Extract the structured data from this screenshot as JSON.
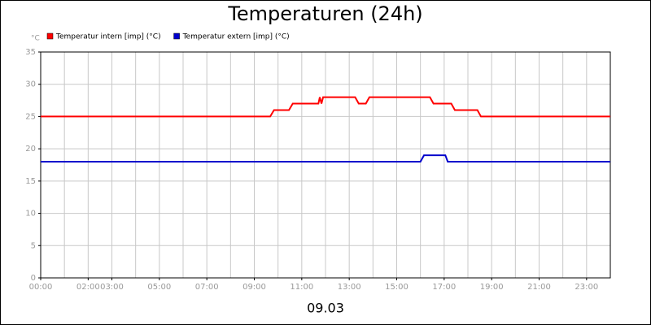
{
  "chart_data": {
    "type": "line",
    "title": "Temperaturen (24h)",
    "ylabel": "°C",
    "xlabel": "09.03",
    "x": [
      0,
      9.67,
      9.83,
      10.46,
      10.62,
      11.7,
      11.76,
      11.83,
      11.9,
      12.0,
      13.25,
      13.4,
      13.7,
      13.85,
      16.0,
      16.15,
      16.4,
      16.55,
      17.05,
      17.15,
      17.3,
      17.45,
      18.4,
      18.55,
      24
    ],
    "series": [
      {
        "name": "Temperatur intern [imp] (°C)",
        "color": "#ff0000",
        "values": [
          25,
          25,
          26,
          26,
          27,
          27,
          28,
          27,
          28,
          28,
          28,
          27,
          27,
          28,
          28,
          28,
          28,
          27,
          27,
          27,
          27,
          26,
          26,
          25,
          25
        ]
      },
      {
        "name": "Temperatur extern [imp] (°C)",
        "color": "#0000cc",
        "values": [
          18,
          18,
          18,
          18,
          18,
          18,
          18,
          18,
          18,
          18,
          18,
          18,
          18,
          18,
          18,
          19,
          19,
          19,
          19,
          18,
          18,
          18,
          18,
          18,
          18
        ]
      }
    ],
    "xlim": [
      0,
      24
    ],
    "xticks": [
      {
        "value": 0,
        "label": "00:00"
      },
      {
        "value": 2,
        "label": "02:00"
      },
      {
        "value": 3,
        "label": "03:00"
      },
      {
        "value": 5,
        "label": "05:00"
      },
      {
        "value": 7,
        "label": "07:00"
      },
      {
        "value": 9,
        "label": "09:00"
      },
      {
        "value": 11,
        "label": "11:00"
      },
      {
        "value": 13,
        "label": "13:00"
      },
      {
        "value": 15,
        "label": "15:00"
      },
      {
        "value": 17,
        "label": "17:00"
      },
      {
        "value": 19,
        "label": "19:00"
      },
      {
        "value": 21,
        "label": "21:00"
      },
      {
        "value": 23,
        "label": "23:00"
      }
    ],
    "xgrid": [
      1,
      4,
      6,
      8,
      10,
      12,
      14,
      16,
      18,
      20,
      22
    ],
    "ylim": [
      0,
      35
    ],
    "yticks": [
      0,
      5,
      10,
      15,
      20,
      25,
      30,
      35
    ],
    "grid": true
  }
}
